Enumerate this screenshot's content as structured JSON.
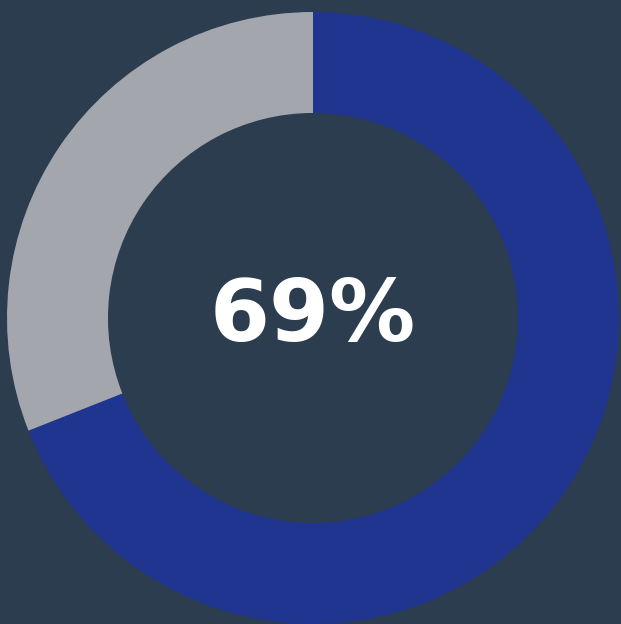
{
  "chart_data": {
    "type": "donut",
    "values": [
      69,
      31
    ],
    "colors": [
      "#1f3590",
      "#a3a7ad"
    ],
    "annotation": "69%"
  }
}
